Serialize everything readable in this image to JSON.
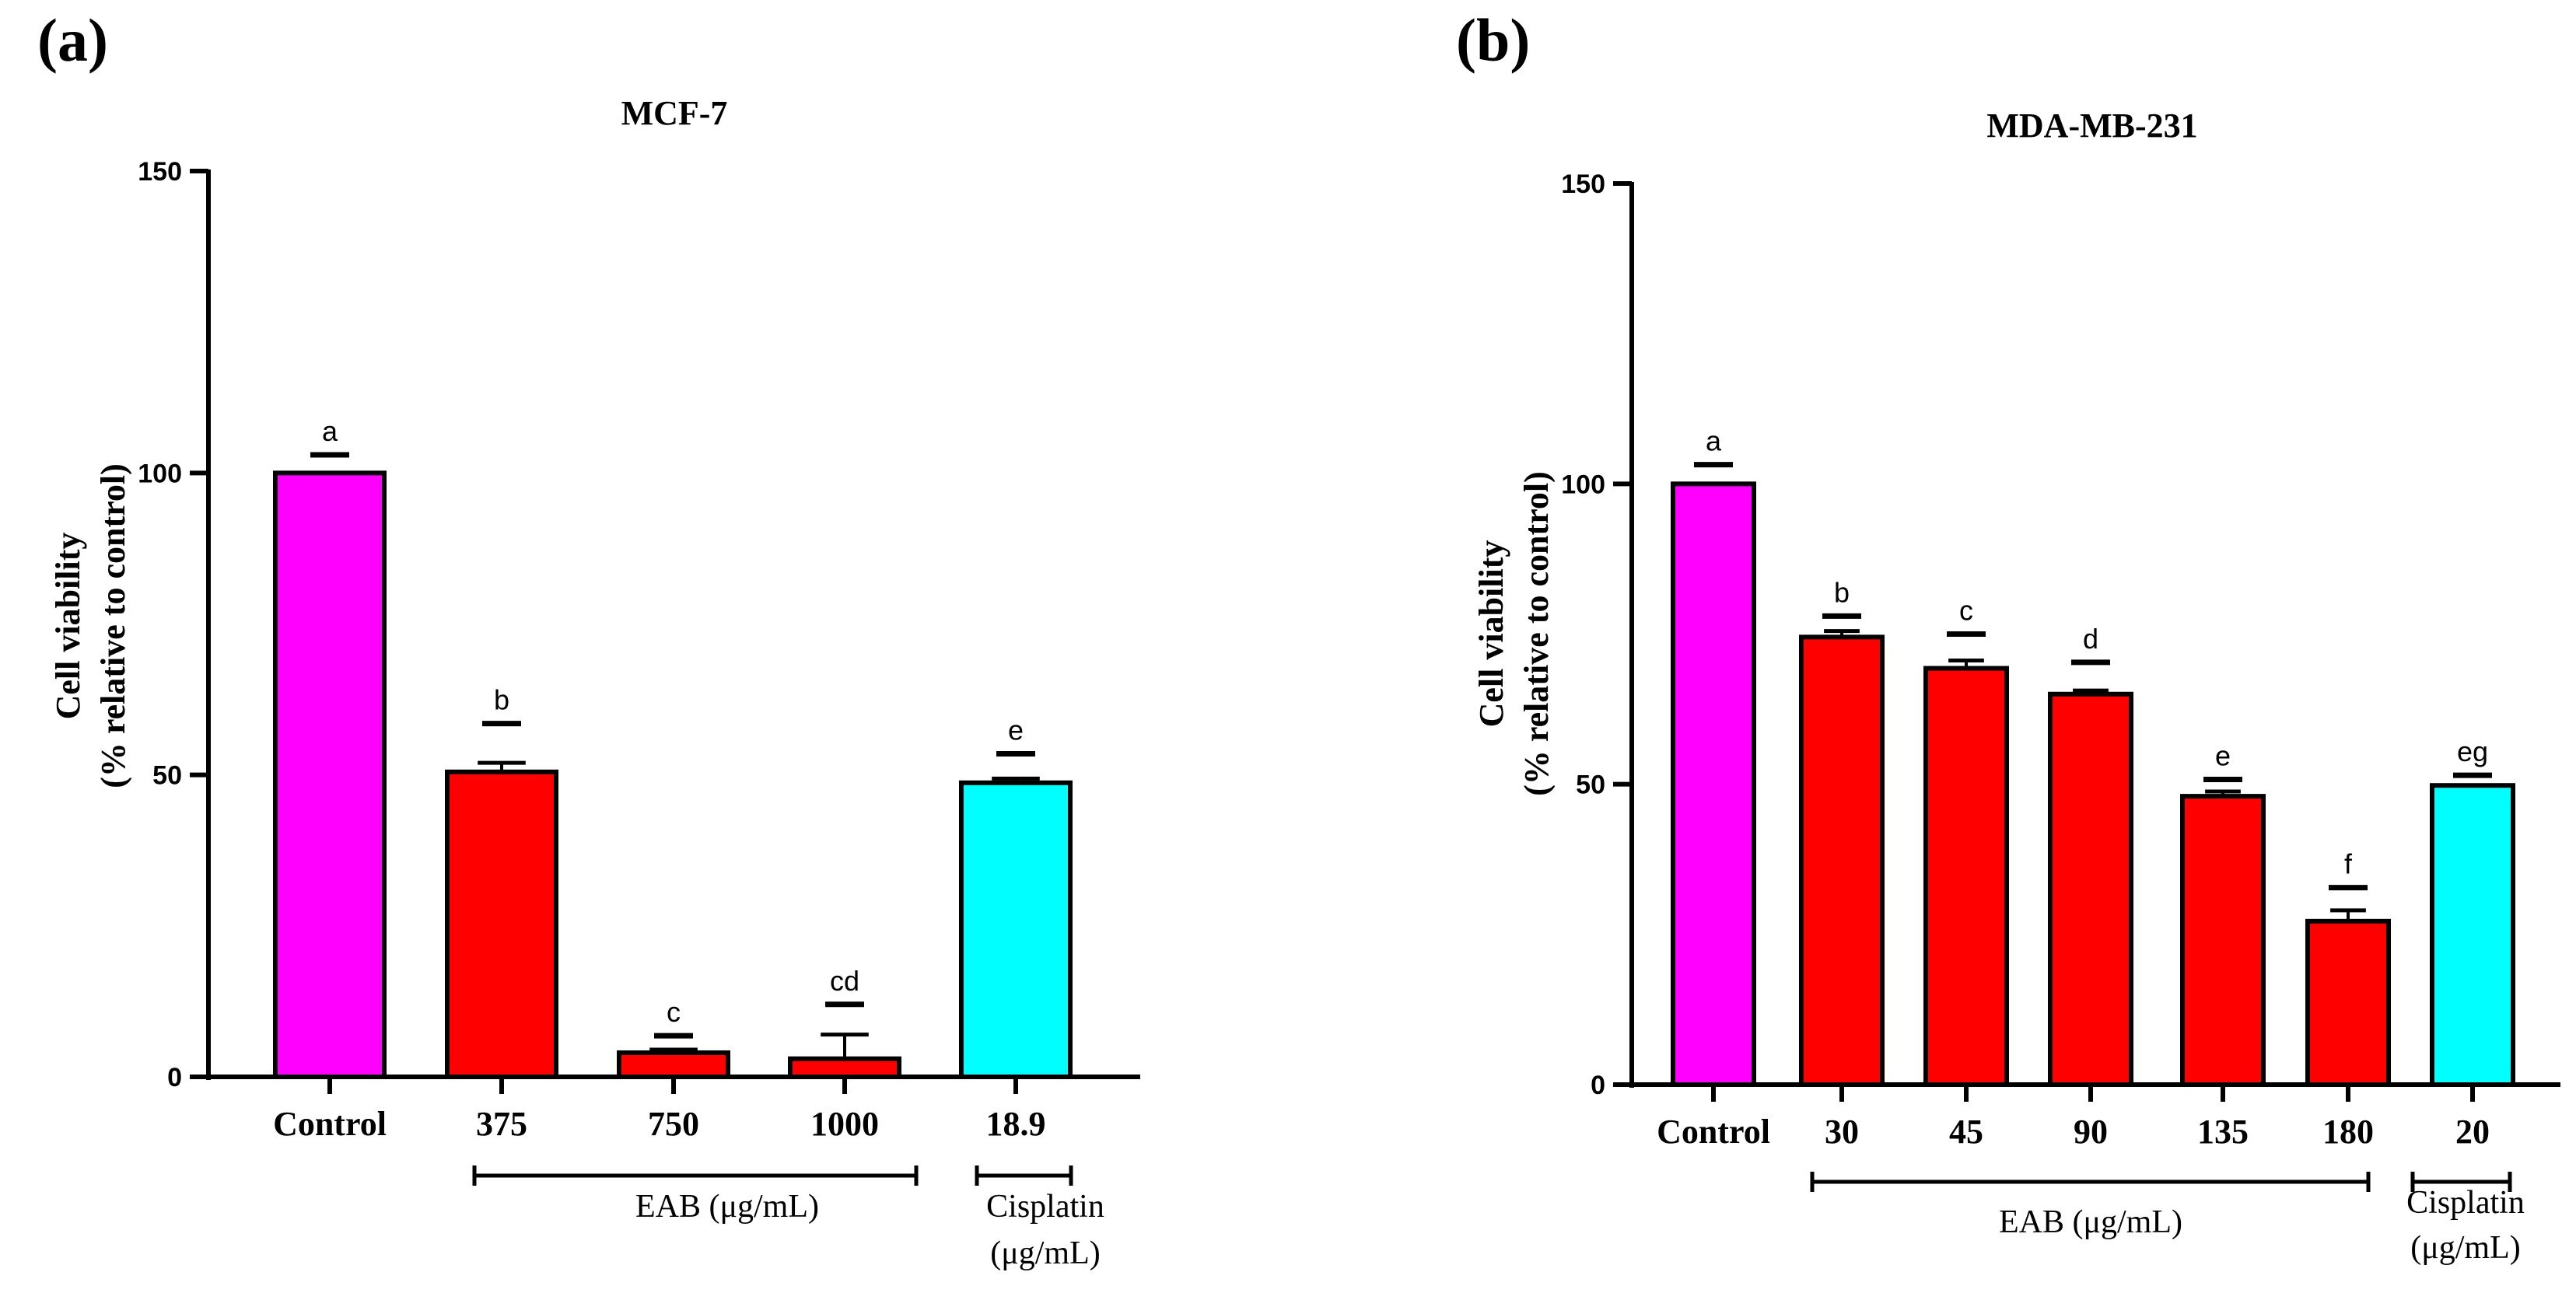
{
  "panel_labels": [
    "(a)",
    "(b)"
  ],
  "chart_data": [
    {
      "type": "bar",
      "panel": "(a)",
      "title": "MCF-7",
      "ylabel_line1": "Cell viability",
      "ylabel_line2": "(% relative to control)",
      "xlabel": "",
      "ylim": [
        0,
        150
      ],
      "yticks": [
        0,
        50,
        100,
        150
      ],
      "categories": [
        "Control",
        "375",
        "750",
        "1000",
        "18.9"
      ],
      "values": [
        100,
        50.5,
        4,
        3,
        48.7
      ],
      "errors": [
        0,
        1.5,
        0.5,
        4,
        0.7
      ],
      "letters": [
        "a",
        "b",
        "c",
        "cd",
        "e"
      ],
      "letter_levels": [
        103,
        58.5,
        6.8,
        12,
        53.5
      ],
      "colors": [
        "#ff00ff",
        "#ff0000",
        "#ff0000",
        "#ff0000",
        "#00ffff"
      ],
      "groups": [
        {
          "label_lines": [
            "EAB (μg/mL)"
          ],
          "from": 1,
          "to": 3
        },
        {
          "label_lines": [
            "Cisplatin",
            "(μg/mL)"
          ],
          "from": 4,
          "to": 4
        }
      ]
    },
    {
      "type": "bar",
      "panel": "(b)",
      "title": "MDA-MB-231",
      "ylabel_line1": "Cell viability",
      "ylabel_line2": "(% relative to control)",
      "xlabel": "",
      "ylim": [
        0,
        150
      ],
      "yticks": [
        0,
        50,
        100,
        150
      ],
      "categories": [
        "Control",
        "30",
        "45",
        "90",
        "135",
        "180",
        "20"
      ],
      "values": [
        100,
        74.5,
        69.3,
        65,
        48,
        27.2,
        49.8
      ],
      "errors": [
        0,
        1,
        1.3,
        0.6,
        0.8,
        1.8,
        0
      ],
      "letters": [
        "a",
        "b",
        "c",
        "d",
        "e",
        "f",
        "eg"
      ],
      "letter_levels": [
        103.2,
        78,
        75,
        70.3,
        50.8,
        32.8,
        51.5
      ],
      "colors": [
        "#ff00ff",
        "#ff0000",
        "#ff0000",
        "#ff0000",
        "#ff0000",
        "#ff0000",
        "#00ffff"
      ],
      "groups": [
        {
          "label_lines": [
            "EAB (μg/mL)"
          ],
          "from": 1,
          "to": 5
        },
        {
          "label_lines": [
            "Cisplatin",
            "(μg/mL)"
          ],
          "from": 6,
          "to": 6
        }
      ]
    }
  ]
}
